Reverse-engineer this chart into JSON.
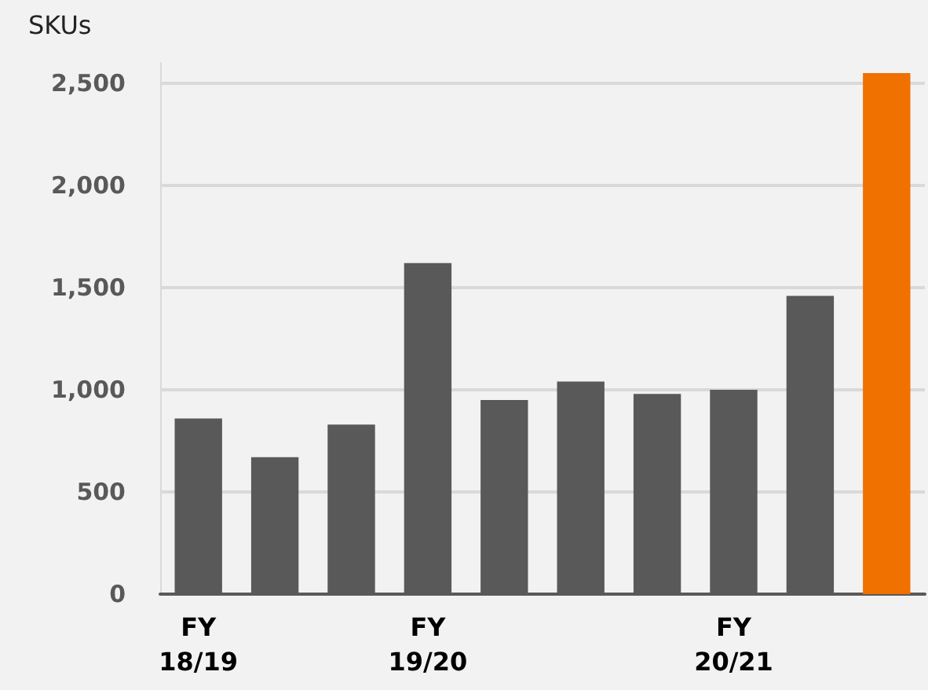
{
  "chart_data": {
    "type": "bar",
    "ylabel": "SKUs",
    "categories": [
      "FY\n18/19",
      null,
      null,
      "FY\n19/20",
      null,
      null,
      null,
      "FY\n20/21",
      null,
      null
    ],
    "values": [
      860,
      670,
      830,
      1620,
      950,
      1040,
      980,
      1000,
      1460,
      2550
    ],
    "colors": [
      "#595959",
      "#595959",
      "#595959",
      "#595959",
      "#595959",
      "#595959",
      "#595959",
      "#595959",
      "#595959",
      "#f07000"
    ],
    "ylim": [
      0,
      2600
    ],
    "yticks": [
      0,
      500,
      {
        "value": 1000,
        "label": "1,000"
      },
      {
        "value": 1500,
        "label": "1,500"
      },
      {
        "value": 2000,
        "label": "2,000"
      },
      {
        "value": 2500,
        "label": "2,500"
      }
    ],
    "grid": "y"
  }
}
